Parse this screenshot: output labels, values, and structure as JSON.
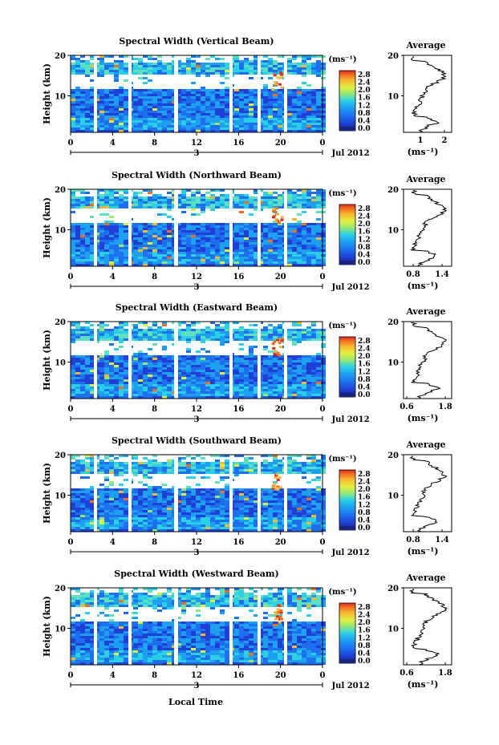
{
  "figure": {
    "xlabel_bottom": "Local Time",
    "date_label": "Jul 2012",
    "day_label": "3",
    "colors": {
      "scale": [
        "#1a237e",
        "#1f3fd6",
        "#1e6ff0",
        "#1ea0f0",
        "#2ad0e8",
        "#5ee0c0",
        "#9be870",
        "#e0f040",
        "#f5b830",
        "#f07020",
        "#e02a20"
      ],
      "background": "#ffffff"
    }
  },
  "chart_data": [
    {
      "type": "heatmap",
      "title": "Spectral Width (Vertical Beam)",
      "ylabel": "Height (km)",
      "x_ticks": [
        "0",
        "4",
        "8",
        "12",
        "16",
        "20",
        "0"
      ],
      "y_ticks": [
        "20",
        "10"
      ],
      "colorbar": {
        "unit": "(ms⁻¹)",
        "ticks": [
          "2.8",
          "2.4",
          "2.0",
          "1.6",
          "1.2",
          "0.8",
          "0.4",
          "0.0"
        ],
        "range": [
          0.0,
          3.0
        ]
      },
      "average": {
        "title": "Average",
        "xlabel": "(ms⁻¹)",
        "x_ticks": [
          "1",
          "2"
        ],
        "xlim": [
          0.3,
          2.3
        ],
        "y_ticks": [
          "20",
          "10"
        ]
      }
    },
    {
      "type": "heatmap",
      "title": "Spectral Width (Northward Beam)",
      "ylabel": "Height (km)",
      "x_ticks": [
        "0",
        "4",
        "8",
        "12",
        "16",
        "20",
        "0"
      ],
      "y_ticks": [
        "20",
        "10"
      ],
      "colorbar": {
        "unit": "(ms⁻¹)",
        "ticks": [
          "2.8",
          "2.4",
          "2.0",
          "1.6",
          "1.2",
          "0.8",
          "0.4",
          "0.0"
        ],
        "range": [
          0.0,
          3.0
        ]
      },
      "average": {
        "title": "Average",
        "xlabel": "(ms⁻¹)",
        "x_ticks": [
          "0.8",
          "1.4"
        ],
        "xlim": [
          0.6,
          1.6
        ],
        "y_ticks": [
          "20",
          "10"
        ]
      }
    },
    {
      "type": "heatmap",
      "title": "Spectral Width (Eastward Beam)",
      "ylabel": "Height (km)",
      "x_ticks": [
        "0",
        "4",
        "8",
        "12",
        "16",
        "20",
        "0"
      ],
      "y_ticks": [
        "20",
        "10"
      ],
      "colorbar": {
        "unit": "(ms⁻¹)",
        "ticks": [
          "2.8",
          "2.4",
          "2.0",
          "1.6",
          "1.2",
          "0.8",
          "0.4",
          "0.0"
        ],
        "range": [
          0.0,
          3.0
        ]
      },
      "average": {
        "title": "Average",
        "xlabel": "(ms⁻¹)",
        "x_ticks": [
          "0.6",
          "1.8"
        ],
        "xlim": [
          0.5,
          2.0
        ],
        "y_ticks": [
          "20",
          "10"
        ]
      }
    },
    {
      "type": "heatmap",
      "title": "Spectral Width (Southward Beam)",
      "ylabel": "Height (km)",
      "x_ticks": [
        "0",
        "4",
        "8",
        "12",
        "16",
        "20",
        "0"
      ],
      "y_ticks": [
        "20",
        "10"
      ],
      "colorbar": {
        "unit": "(ms⁻¹)",
        "ticks": [
          "2.8",
          "2.4",
          "2.0",
          "1.6",
          "1.2",
          "0.8",
          "0.4",
          "0.0"
        ],
        "range": [
          0.0,
          3.0
        ]
      },
      "average": {
        "title": "Average",
        "xlabel": "(ms⁻¹)",
        "x_ticks": [
          "0.8",
          "1.4"
        ],
        "xlim": [
          0.6,
          1.6
        ],
        "y_ticks": [
          "20",
          "10"
        ]
      }
    },
    {
      "type": "heatmap",
      "title": "Spectral Width (Westward Beam)",
      "ylabel": "Height (km)",
      "x_ticks": [
        "0",
        "4",
        "8",
        "12",
        "16",
        "20",
        "0"
      ],
      "y_ticks": [
        "20",
        "10"
      ],
      "colorbar": {
        "unit": "(ms⁻¹)",
        "ticks": [
          "2.8",
          "2.4",
          "2.0",
          "1.6",
          "1.2",
          "0.8",
          "0.4",
          "0.0"
        ],
        "range": [
          0.0,
          3.0
        ]
      },
      "average": {
        "title": "Average",
        "xlabel": "(ms⁻¹)",
        "x_ticks": [
          "0.6",
          "1.8"
        ],
        "xlim": [
          0.5,
          2.0
        ],
        "y_ticks": [
          "20",
          "10"
        ]
      }
    }
  ]
}
